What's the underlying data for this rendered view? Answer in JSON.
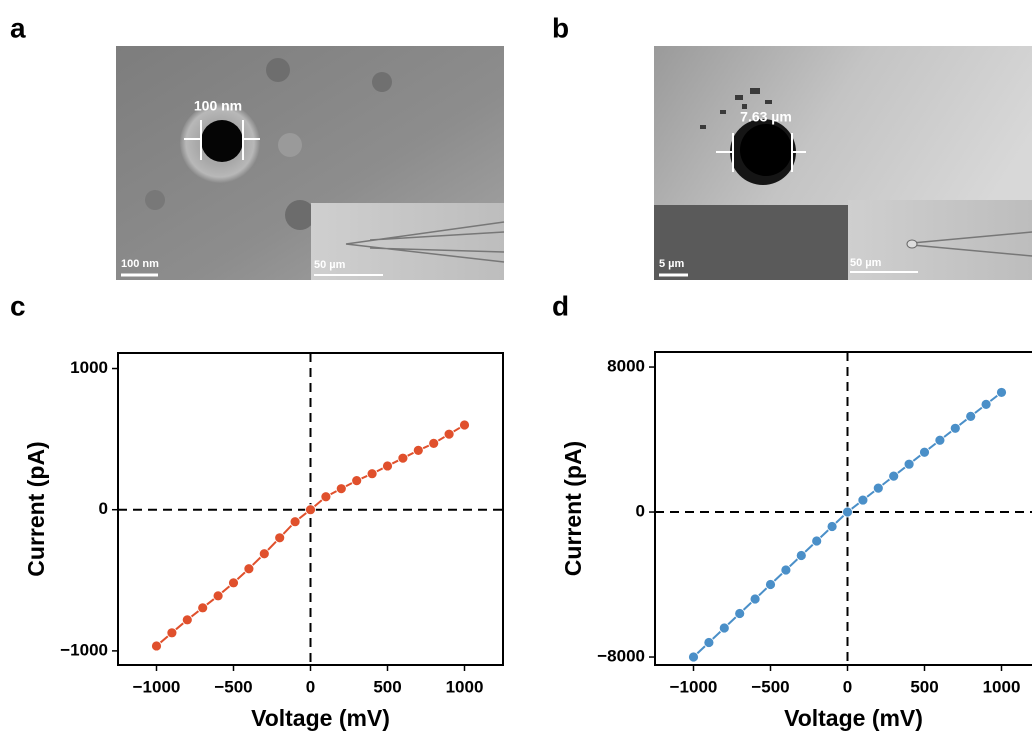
{
  "panels": [
    "a",
    "b",
    "c",
    "d"
  ],
  "images": [
    {
      "measurement": "100 nm",
      "scale_bar": "100 nm",
      "inset_scale_bar": "50 µm"
    },
    {
      "measurement": "7.63 µm",
      "scale_bar": "5 µm",
      "inset_scale_bar": "50 µm"
    }
  ],
  "chart_data": [
    {
      "type": "line",
      "x_label": "Voltage (mV)",
      "y_label": "Current (pA)",
      "x": [
        -1000,
        -900,
        -800,
        -700,
        -600,
        -500,
        -400,
        -300,
        -200,
        -100,
        0,
        100,
        200,
        300,
        400,
        500,
        600,
        700,
        800,
        900,
        1000
      ],
      "series": [
        {
          "color": "#e0502c",
          "values": [
            -965,
            -872,
            -780,
            -695,
            -610,
            -518,
            -418,
            -312,
            -199,
            -85,
            0,
            92,
            149,
            206,
            255,
            310,
            365,
            420,
            470,
            535,
            600
          ]
        }
      ],
      "xlim": [
        -1250,
        1250
      ],
      "xticks": [
        {
          "value": -1000,
          "label": "−1000"
        },
        {
          "value": -500,
          "label": "−500"
        },
        0,
        500,
        1000
      ],
      "ylim": [
        -1100,
        1110
      ],
      "yticks": [
        {
          "value": -1000,
          "label": "−1000"
        },
        0,
        1000
      ],
      "zero_lines": true
    },
    {
      "type": "line",
      "x_label": "Voltage (mV)",
      "y_label": "Current (pA)",
      "x": [
        -1000,
        -900,
        -800,
        -700,
        -600,
        -500,
        -400,
        -300,
        -200,
        -100,
        0,
        100,
        200,
        300,
        400,
        500,
        600,
        700,
        800,
        900,
        1000
      ],
      "series": [
        {
          "color": "#4a8fc8",
          "values": [
            -8000,
            -7200,
            -6400,
            -5600,
            -4800,
            -4000,
            -3200,
            -2400,
            -1600,
            -800,
            0,
            660,
            1320,
            1980,
            2640,
            3300,
            3960,
            4620,
            5280,
            5940,
            6600
          ]
        }
      ],
      "xlim": [
        -1250,
        1250
      ],
      "xticks": [
        {
          "value": -1000,
          "label": "−1000"
        },
        {
          "value": -500,
          "label": "−500"
        },
        0,
        500,
        1000
      ],
      "ylim": [
        -8440,
        8830
      ],
      "yticks": [
        {
          "value": -8000,
          "label": "−8000"
        },
        0,
        8000
      ],
      "zero_lines": true
    }
  ]
}
